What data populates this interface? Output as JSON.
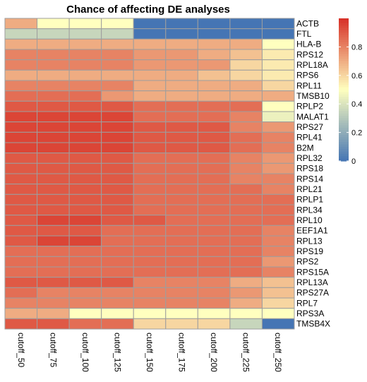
{
  "chart_data": {
    "type": "heatmap",
    "title": "Chance of affecting DE analyses",
    "rows": [
      "ACTB",
      "FTL",
      "HLA-B",
      "RPS12",
      "RPL18A",
      "RPS6",
      "RPL11",
      "TMSB10",
      "RPLP2",
      "MALAT1",
      "RPS27",
      "RPL41",
      "B2M",
      "RPL32",
      "RPS18",
      "RPS14",
      "RPL21",
      "RPLP1",
      "RPL34",
      "RPL10",
      "EEF1A1",
      "RPL13",
      "RPS19",
      "RPS2",
      "RPS15A",
      "RPL13A",
      "RPS27A",
      "RPL7",
      "RPS3A",
      "TMSB4X"
    ],
    "columns": [
      "cutoff_50",
      "cutoff_75",
      "cutoff_100",
      "cutoff_125",
      "cutoff_150",
      "cutoff_175",
      "cutoff_200",
      "cutoff_225",
      "cutoff_250"
    ],
    "values": [
      [
        0.7,
        0.5,
        0.5,
        0.5,
        0.0,
        0.0,
        0.0,
        0.0,
        0.0
      ],
      [
        0.35,
        0.35,
        0.35,
        0.35,
        0.0,
        0.0,
        0.0,
        0.0,
        0.0
      ],
      [
        0.7,
        0.7,
        0.7,
        0.7,
        0.7,
        0.7,
        0.7,
        0.7,
        0.5
      ],
      [
        0.8,
        0.8,
        0.8,
        0.8,
        0.75,
        0.75,
        0.7,
        0.65,
        0.55
      ],
      [
        0.8,
        0.8,
        0.8,
        0.8,
        0.75,
        0.75,
        0.75,
        0.6,
        0.55
      ],
      [
        0.7,
        0.7,
        0.7,
        0.7,
        0.7,
        0.7,
        0.65,
        0.6,
        0.55
      ],
      [
        0.8,
        0.8,
        0.8,
        0.8,
        0.7,
        0.7,
        0.7,
        0.7,
        0.6
      ],
      [
        0.85,
        0.85,
        0.85,
        0.75,
        0.7,
        0.7,
        0.7,
        0.7,
        0.7
      ],
      [
        0.9,
        0.9,
        0.9,
        0.9,
        0.85,
        0.85,
        0.85,
        0.85,
        0.5
      ],
      [
        0.95,
        0.95,
        0.95,
        0.95,
        0.85,
        0.85,
        0.85,
        0.8,
        0.45
      ],
      [
        0.95,
        0.95,
        0.95,
        0.95,
        0.9,
        0.9,
        0.9,
        0.8,
        0.75
      ],
      [
        0.95,
        0.95,
        0.95,
        0.95,
        0.9,
        0.9,
        0.9,
        0.85,
        0.8
      ],
      [
        0.95,
        0.95,
        0.95,
        0.95,
        0.9,
        0.9,
        0.9,
        0.85,
        0.8
      ],
      [
        0.9,
        0.9,
        0.9,
        0.9,
        0.85,
        0.85,
        0.85,
        0.8,
        0.75
      ],
      [
        0.9,
        0.9,
        0.9,
        0.9,
        0.85,
        0.85,
        0.85,
        0.8,
        0.75
      ],
      [
        0.9,
        0.9,
        0.9,
        0.9,
        0.85,
        0.85,
        0.85,
        0.8,
        0.8
      ],
      [
        0.9,
        0.9,
        0.9,
        0.9,
        0.85,
        0.85,
        0.85,
        0.85,
        0.8
      ],
      [
        0.9,
        0.9,
        0.9,
        0.9,
        0.85,
        0.85,
        0.85,
        0.85,
        0.85
      ],
      [
        0.9,
        0.9,
        0.9,
        0.9,
        0.85,
        0.85,
        0.85,
        0.85,
        0.85
      ],
      [
        0.9,
        0.95,
        0.95,
        0.9,
        0.9,
        0.85,
        0.85,
        0.85,
        0.85
      ],
      [
        0.9,
        0.9,
        0.9,
        0.85,
        0.85,
        0.85,
        0.85,
        0.85,
        0.8
      ],
      [
        0.9,
        0.95,
        0.95,
        0.85,
        0.85,
        0.85,
        0.85,
        0.85,
        0.8
      ],
      [
        0.85,
        0.85,
        0.85,
        0.85,
        0.85,
        0.85,
        0.85,
        0.85,
        0.8
      ],
      [
        0.85,
        0.85,
        0.85,
        0.85,
        0.85,
        0.85,
        0.85,
        0.85,
        0.75
      ],
      [
        0.85,
        0.85,
        0.85,
        0.85,
        0.85,
        0.85,
        0.85,
        0.85,
        0.8
      ],
      [
        0.9,
        0.9,
        0.9,
        0.9,
        0.8,
        0.8,
        0.8,
        0.7,
        0.65
      ],
      [
        0.85,
        0.8,
        0.8,
        0.8,
        0.8,
        0.8,
        0.8,
        0.75,
        0.65
      ],
      [
        0.8,
        0.8,
        0.8,
        0.8,
        0.8,
        0.8,
        0.8,
        0.7,
        0.6
      ],
      [
        0.7,
        0.7,
        0.5,
        0.5,
        0.5,
        0.5,
        0.5,
        0.5,
        0.5
      ],
      [
        0.9,
        0.9,
        0.85,
        0.85,
        0.6,
        0.6,
        0.6,
        0.35,
        0.0
      ]
    ],
    "legend": {
      "ticks": [
        0,
        0.2,
        0.4,
        0.6,
        0.8
      ],
      "range": [
        0,
        1
      ],
      "placement": "right"
    },
    "colors": {
      "low": "#4575b4",
      "mid": "#ffffbf",
      "high": "#d73027",
      "cell_border": "#9e9e9e"
    }
  }
}
